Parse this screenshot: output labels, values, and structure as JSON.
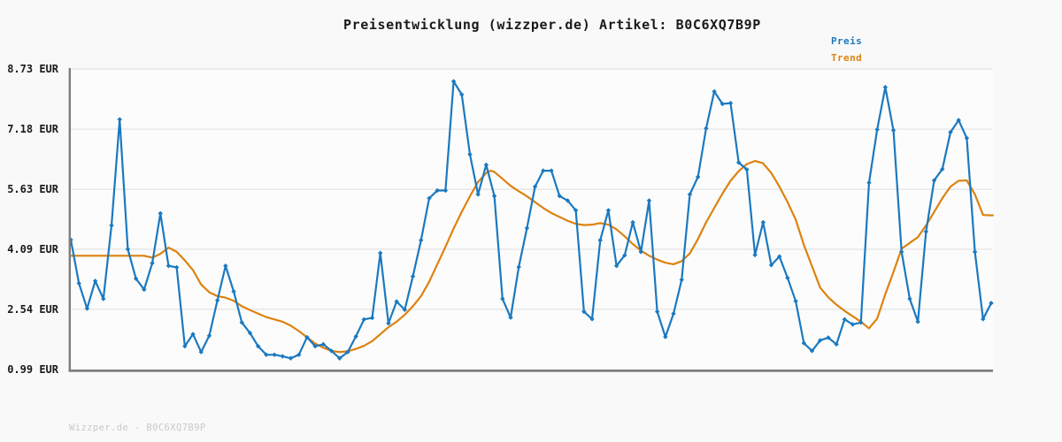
{
  "title": "Preisentwicklung (wizzper.de) Artikel: B0C6XQ7B9P",
  "legend": {
    "price_label": "Preis",
    "trend_label": "Trend"
  },
  "watermark": "Wizzper.de - B0C6XQ7B9P",
  "colors": {
    "price": "#1b79c0",
    "trend": "#dd820f",
    "grid": "#e7e7e7",
    "axis": "#7d7d7d",
    "title_text": "#1a1a1a",
    "watermark_text": "#c9c9c9",
    "background": "#f9f9f9",
    "plot_background": "#fcfcfc"
  },
  "y_axis": {
    "unit": "EUR",
    "min": 0.99,
    "max": 8.73,
    "tick_values": [
      8.73,
      7.18,
      5.63,
      4.09,
      2.54,
      0.99
    ],
    "tick_labels": [
      "8.73 EUR",
      "7.18 EUR",
      "5.63 EUR",
      "4.09 EUR",
      "2.54 EUR",
      "0.99 EUR"
    ]
  },
  "chart_data": {
    "type": "line",
    "title": "Preisentwicklung (wizzper.de) Artikel: B0C6XQ7B9P",
    "xlabel": "",
    "ylabel": "EUR",
    "ylim": [
      0.99,
      8.73
    ],
    "x_range_days": [
      0,
      113
    ],
    "grid": "horizontal",
    "legend_position": "top-right",
    "x_tick_labels": [],
    "series": [
      {
        "name": "Preis",
        "style": "line-with-diamond-markers",
        "values": [
          4.33,
          3.21,
          2.56,
          3.27,
          2.81,
          4.7,
          7.43,
          4.09,
          3.33,
          3.05,
          3.73,
          5.01,
          3.66,
          3.62,
          1.59,
          1.9,
          1.44,
          1.86,
          2.77,
          3.66,
          3.0,
          2.2,
          1.93,
          1.59,
          1.37,
          1.37,
          1.33,
          1.28,
          1.37,
          1.82,
          1.59,
          1.64,
          1.47,
          1.28,
          1.44,
          1.84,
          2.28,
          2.32,
          3.99,
          2.18,
          2.74,
          2.53,
          3.39,
          4.32,
          5.4,
          5.6,
          5.6,
          8.41,
          8.07,
          6.53,
          5.5,
          6.26,
          5.46,
          2.81,
          2.33,
          3.63,
          4.63,
          5.7,
          6.11,
          6.11,
          5.46,
          5.34,
          5.09,
          2.48,
          2.29,
          4.32,
          5.09,
          3.66,
          3.93,
          4.78,
          4.02,
          5.34,
          2.48,
          1.83,
          2.43,
          3.3,
          5.5,
          5.95,
          7.2,
          8.15,
          7.83,
          7.85,
          6.32,
          6.14,
          3.94,
          4.78,
          3.68,
          3.9,
          3.35,
          2.75,
          1.67,
          1.47,
          1.74,
          1.81,
          1.64,
          2.28,
          2.15,
          2.2,
          5.8,
          7.17,
          8.26,
          7.15,
          4.02,
          2.81,
          2.22,
          4.54,
          5.86,
          6.15,
          7.1,
          7.41,
          6.95,
          4.02,
          2.29,
          2.7
        ]
      },
      {
        "name": "Trend",
        "style": "smooth-line",
        "points": [
          [
            0,
            3.92
          ],
          [
            2,
            3.92
          ],
          [
            4,
            3.92
          ],
          [
            6,
            3.92
          ],
          [
            8,
            3.92
          ],
          [
            9,
            3.92
          ],
          [
            10,
            3.87
          ],
          [
            11,
            3.97
          ],
          [
            12,
            4.13
          ],
          [
            13,
            4.02
          ],
          [
            14,
            3.8
          ],
          [
            15,
            3.55
          ],
          [
            16,
            3.18
          ],
          [
            17,
            2.98
          ],
          [
            18,
            2.88
          ],
          [
            19,
            2.84
          ],
          [
            20,
            2.76
          ],
          [
            21,
            2.62
          ],
          [
            22,
            2.52
          ],
          [
            23,
            2.43
          ],
          [
            24,
            2.34
          ],
          [
            25,
            2.28
          ],
          [
            26,
            2.22
          ],
          [
            27,
            2.12
          ],
          [
            28,
            1.98
          ],
          [
            29,
            1.82
          ],
          [
            30,
            1.66
          ],
          [
            31,
            1.55
          ],
          [
            32,
            1.47
          ],
          [
            33,
            1.44
          ],
          [
            34,
            1.46
          ],
          [
            35,
            1.52
          ],
          [
            36,
            1.6
          ],
          [
            37,
            1.72
          ],
          [
            38,
            1.9
          ],
          [
            39,
            2.08
          ],
          [
            40,
            2.22
          ],
          [
            41,
            2.4
          ],
          [
            42,
            2.62
          ],
          [
            43,
            2.88
          ],
          [
            44,
            3.25
          ],
          [
            45,
            3.7
          ],
          [
            46,
            4.15
          ],
          [
            47,
            4.62
          ],
          [
            48,
            5.05
          ],
          [
            49,
            5.45
          ],
          [
            50,
            5.82
          ],
          [
            51,
            6.05
          ],
          [
            51.5,
            6.11
          ],
          [
            52,
            6.08
          ],
          [
            53,
            5.9
          ],
          [
            54,
            5.72
          ],
          [
            55,
            5.58
          ],
          [
            56,
            5.45
          ],
          [
            57,
            5.3
          ],
          [
            58,
            5.15
          ],
          [
            59,
            5.02
          ],
          [
            60,
            4.92
          ],
          [
            61,
            4.82
          ],
          [
            62,
            4.74
          ],
          [
            63,
            4.71
          ],
          [
            64,
            4.72
          ],
          [
            65,
            4.76
          ],
          [
            66,
            4.72
          ],
          [
            67,
            4.6
          ],
          [
            68,
            4.42
          ],
          [
            69,
            4.22
          ],
          [
            70,
            4.05
          ],
          [
            71,
            3.92
          ],
          [
            72,
            3.82
          ],
          [
            73,
            3.74
          ],
          [
            74,
            3.7
          ],
          [
            75,
            3.78
          ],
          [
            76,
            3.98
          ],
          [
            77,
            4.35
          ],
          [
            78,
            4.78
          ],
          [
            79,
            5.15
          ],
          [
            80,
            5.52
          ],
          [
            81,
            5.85
          ],
          [
            82,
            6.1
          ],
          [
            83,
            6.28
          ],
          [
            84,
            6.36
          ],
          [
            85,
            6.3
          ],
          [
            86,
            6.05
          ],
          [
            87,
            5.7
          ],
          [
            88,
            5.3
          ],
          [
            89,
            4.85
          ],
          [
            90,
            4.2
          ],
          [
            91,
            3.65
          ],
          [
            92,
            3.1
          ],
          [
            93,
            2.85
          ],
          [
            94,
            2.66
          ],
          [
            95,
            2.5
          ],
          [
            96,
            2.36
          ],
          [
            97,
            2.22
          ],
          [
            98,
            2.05
          ],
          [
            99,
            2.3
          ],
          [
            100,
            2.93
          ],
          [
            101,
            3.5
          ],
          [
            102,
            4.1
          ],
          [
            103,
            4.25
          ],
          [
            104,
            4.4
          ],
          [
            105,
            4.7
          ],
          [
            106,
            5.05
          ],
          [
            107,
            5.4
          ],
          [
            108,
            5.7
          ],
          [
            109,
            5.85
          ],
          [
            110,
            5.86
          ],
          [
            111,
            5.5
          ],
          [
            112,
            4.97
          ],
          [
            113.2,
            4.96
          ]
        ]
      }
    ]
  }
}
